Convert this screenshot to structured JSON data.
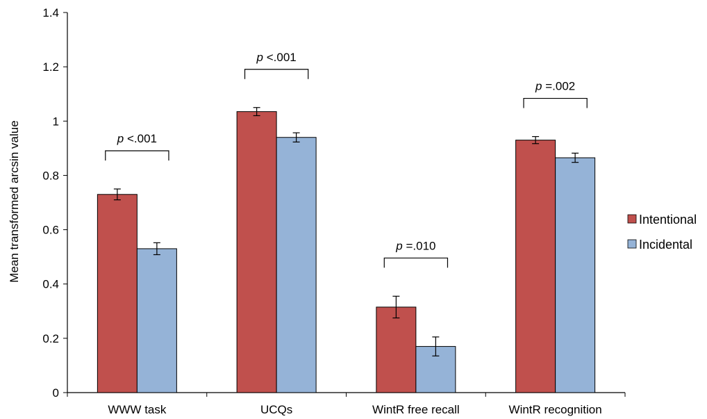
{
  "chart_data": {
    "type": "bar",
    "title": "",
    "xlabel": "",
    "ylabel": "Mean transformed arcsin value",
    "ylim": [
      0,
      1.4
    ],
    "yticks": [
      "0",
      "0.2",
      "0.4",
      "0.6",
      "0.8",
      "1",
      "1.2",
      "1.4"
    ],
    "categories": [
      "WWW task",
      "UCQs",
      "WintR free recall",
      "WintR recognition"
    ],
    "series": [
      {
        "name": "Intentional",
        "color": "#c0504d",
        "values": [
          0.73,
          1.035,
          0.315,
          0.93
        ],
        "errors": [
          0.02,
          0.015,
          0.04,
          0.013
        ]
      },
      {
        "name": "Incidental",
        "color": "#95b3d7",
        "values": [
          0.53,
          0.94,
          0.17,
          0.865
        ],
        "errors": [
          0.022,
          0.017,
          0.035,
          0.017
        ]
      }
    ],
    "annotations": [
      {
        "prefix": "p",
        "text": " <.001"
      },
      {
        "prefix": "p",
        "text": " <.001"
      },
      {
        "prefix": "p",
        "text": " =.010"
      },
      {
        "prefix": "p",
        "text": " =.002"
      }
    ],
    "legend_position": "right",
    "grid": false
  }
}
